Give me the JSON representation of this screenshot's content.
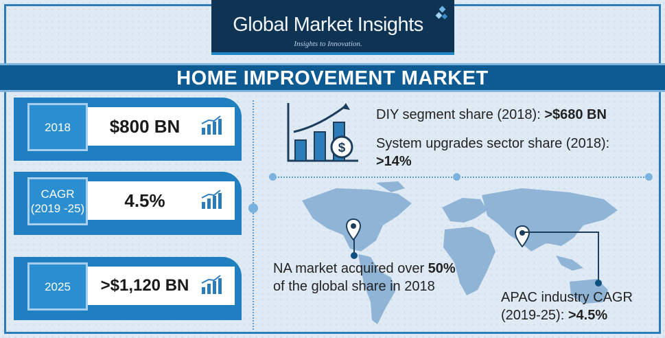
{
  "brand": {
    "name": "Global Market Insights",
    "tagline": "Insights to Innovation."
  },
  "title": "HOME IMPROVEMENT MARKET",
  "stats": [
    {
      "label": "2018",
      "value": "$800 BN"
    },
    {
      "label": "CAGR (2019 -25)",
      "value": "4.5%"
    },
    {
      "label": "2025",
      "value": ">$1,120 BN"
    }
  ],
  "facts": {
    "diy": {
      "text": "DIY segment share (2018): ",
      "value": ">$680 BN"
    },
    "system": {
      "text": "System upgrades sector share (2018):",
      "value": ">14%"
    },
    "na": {
      "line1_a": "NA market acquired over ",
      "line1_b": "50%",
      "line2": "of the global share in 2018"
    },
    "apac": {
      "line1": "APAC industry CAGR",
      "line2_a": "(2019-25): ",
      "line2_b": ">4.5%"
    }
  },
  "colors": {
    "title_band": "#0e5a93",
    "card_blue": "#1f7fc1",
    "logo_bg": "#0f3352",
    "map": "#8fb4d6"
  },
  "icons": [
    "trend-chart-icon",
    "bar-chart-dollar-icon",
    "world-map-icon",
    "location-pin-icon"
  ]
}
